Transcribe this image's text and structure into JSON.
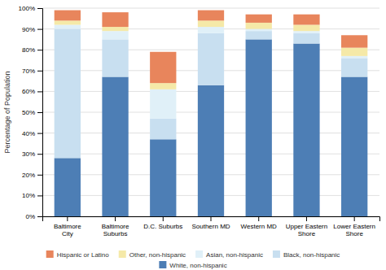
{
  "chart_data": {
    "type": "bar",
    "stacked": true,
    "categories": [
      "Baltimore\nCity",
      "Baltimore\nSuburbs",
      "D.C. Suburbs",
      "Southern MD",
      "Western MD",
      "Upper Eastern\nShore",
      "Lower Eastern\nShore"
    ],
    "series": [
      {
        "name": "White, non-hispanic",
        "color": "#4d7eb5",
        "values": [
          28,
          67,
          37,
          63,
          85,
          83,
          67
        ]
      },
      {
        "name": "Black, non-hispanic",
        "color": "#c8dff0",
        "values": [
          62,
          18,
          10,
          25,
          4,
          5,
          9
        ]
      },
      {
        "name": "Asian, non-hispanic",
        "color": "#e0f0f8",
        "values": [
          2,
          4,
          14,
          3,
          1,
          1,
          1
        ]
      },
      {
        "name": "Other, non-hispanic",
        "color": "#f5e9a8",
        "values": [
          2,
          2,
          3,
          3,
          3,
          3,
          4
        ]
      },
      {
        "name": "Hispanic or Latino",
        "color": "#e8855c",
        "values": [
          5,
          7,
          15,
          5,
          4,
          5,
          6
        ]
      }
    ],
    "ylabel": "Percentage of Population",
    "ylim": [
      0,
      100
    ],
    "yticks": [
      {
        "value": 0,
        "label": "0%"
      },
      {
        "value": 10,
        "label": "10%"
      },
      {
        "value": 20,
        "label": "20%"
      },
      {
        "value": 30,
        "label": "30%"
      },
      {
        "value": 40,
        "label": "40%"
      },
      {
        "value": 50,
        "label": "50%"
      },
      {
        "value": 60,
        "label": "60%"
      },
      {
        "value": 70,
        "label": "70%"
      },
      {
        "value": 80,
        "label": "80%"
      },
      {
        "value": 90,
        "label": "90%"
      },
      {
        "value": 100,
        "label": "100%"
      }
    ],
    "grid": true,
    "legend": "bottom"
  }
}
